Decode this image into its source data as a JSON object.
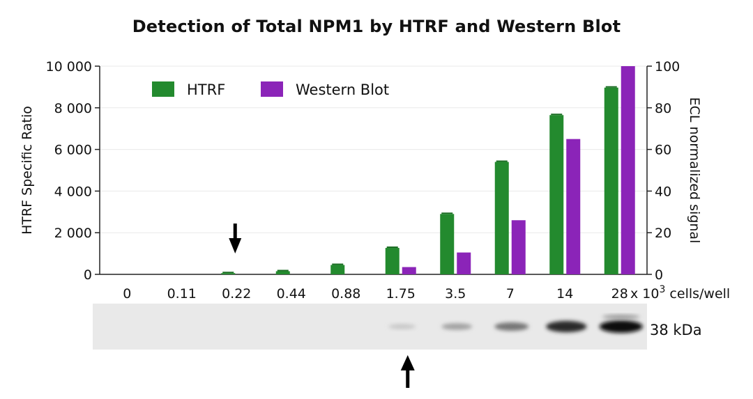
{
  "chart_data": {
    "type": "bar",
    "title": "Detection of Total NPM1 by HTRF and Western Blot",
    "categories": [
      "0",
      "0.11",
      "0.22",
      "0.44",
      "0.88",
      "1.75",
      "3.5",
      "7",
      "14",
      "28"
    ],
    "x_unit_label": {
      "prefix": "x 10",
      "superscript": "3",
      "suffix": " cells/well"
    },
    "y_left": {
      "label": "HTRF Specific Ratio",
      "ylim": [
        0,
        10000
      ],
      "ticks": [
        0,
        2000,
        4000,
        6000,
        8000,
        10000
      ],
      "tick_labels": [
        "0",
        "2 000",
        "4 000",
        "6 000",
        "8 000",
        "10 000"
      ]
    },
    "y_right": {
      "label": "ECL normalized signal",
      "ylim": [
        0,
        100
      ],
      "ticks": [
        0,
        20,
        40,
        60,
        80,
        100
      ],
      "tick_labels": [
        "0",
        "20",
        "40",
        "60",
        "80",
        "100"
      ]
    },
    "series": [
      {
        "name": "HTRF",
        "axis": "left",
        "color": "#238a2e",
        "values": [
          0,
          0,
          60,
          150,
          450,
          1270,
          2900,
          5400,
          7650,
          8970
        ]
      },
      {
        "name": "Western Blot",
        "axis": "right",
        "color": "#8b24b8",
        "values": [
          0,
          0,
          0,
          0,
          0,
          3.5,
          10.5,
          26,
          65,
          100
        ]
      }
    ],
    "legend": "top-left",
    "grid": true,
    "annotations": {
      "chart_arrow_category": "0.22",
      "blot_arrow_category": "1.75"
    },
    "blot": {
      "label": "38 kDa",
      "band_intensities": [
        0,
        0,
        0,
        0,
        0,
        0.12,
        0.3,
        0.5,
        0.85,
        1.0
      ]
    }
  }
}
